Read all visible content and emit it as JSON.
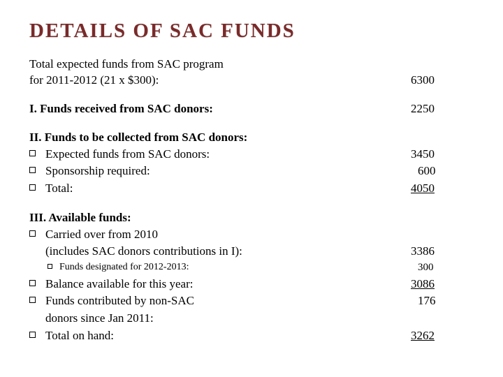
{
  "title": "DETAILS OF SAC FUNDS",
  "total": {
    "line1": "Total expected funds from SAC program",
    "line2": "for 2011-2012 (21 x $300):",
    "value": "6300"
  },
  "section1": {
    "heading": "I. Funds received from SAC donors:",
    "value": "2250"
  },
  "section2": {
    "heading": "II. Funds to be collected from SAC donors:",
    "items": [
      {
        "label": "Expected funds from SAC donors:",
        "value": "3450"
      },
      {
        "label": "Sponsorship required:",
        "value": "600",
        "pad": true
      },
      {
        "label": "Total:",
        "value": "4050",
        "underline": true
      }
    ]
  },
  "section3": {
    "heading": "III. Available funds:",
    "carried": {
      "line1": "Carried over from 2010",
      "line2": "(includes SAC donors contributions in I):",
      "value": "3386"
    },
    "nested": {
      "label": "Funds designated for 2012-2013:",
      "value": "300",
      "pad": true
    },
    "balance": {
      "label": "Balance available for this year:",
      "value": "3086",
      "underline": true
    },
    "nonsac": {
      "line1": "Funds contributed by non-SAC",
      "line2": "donors since Jan 2011:",
      "value": "176",
      "pad": true
    },
    "total": {
      "label": "Total on hand:",
      "value": "3262",
      "underline": true
    }
  }
}
